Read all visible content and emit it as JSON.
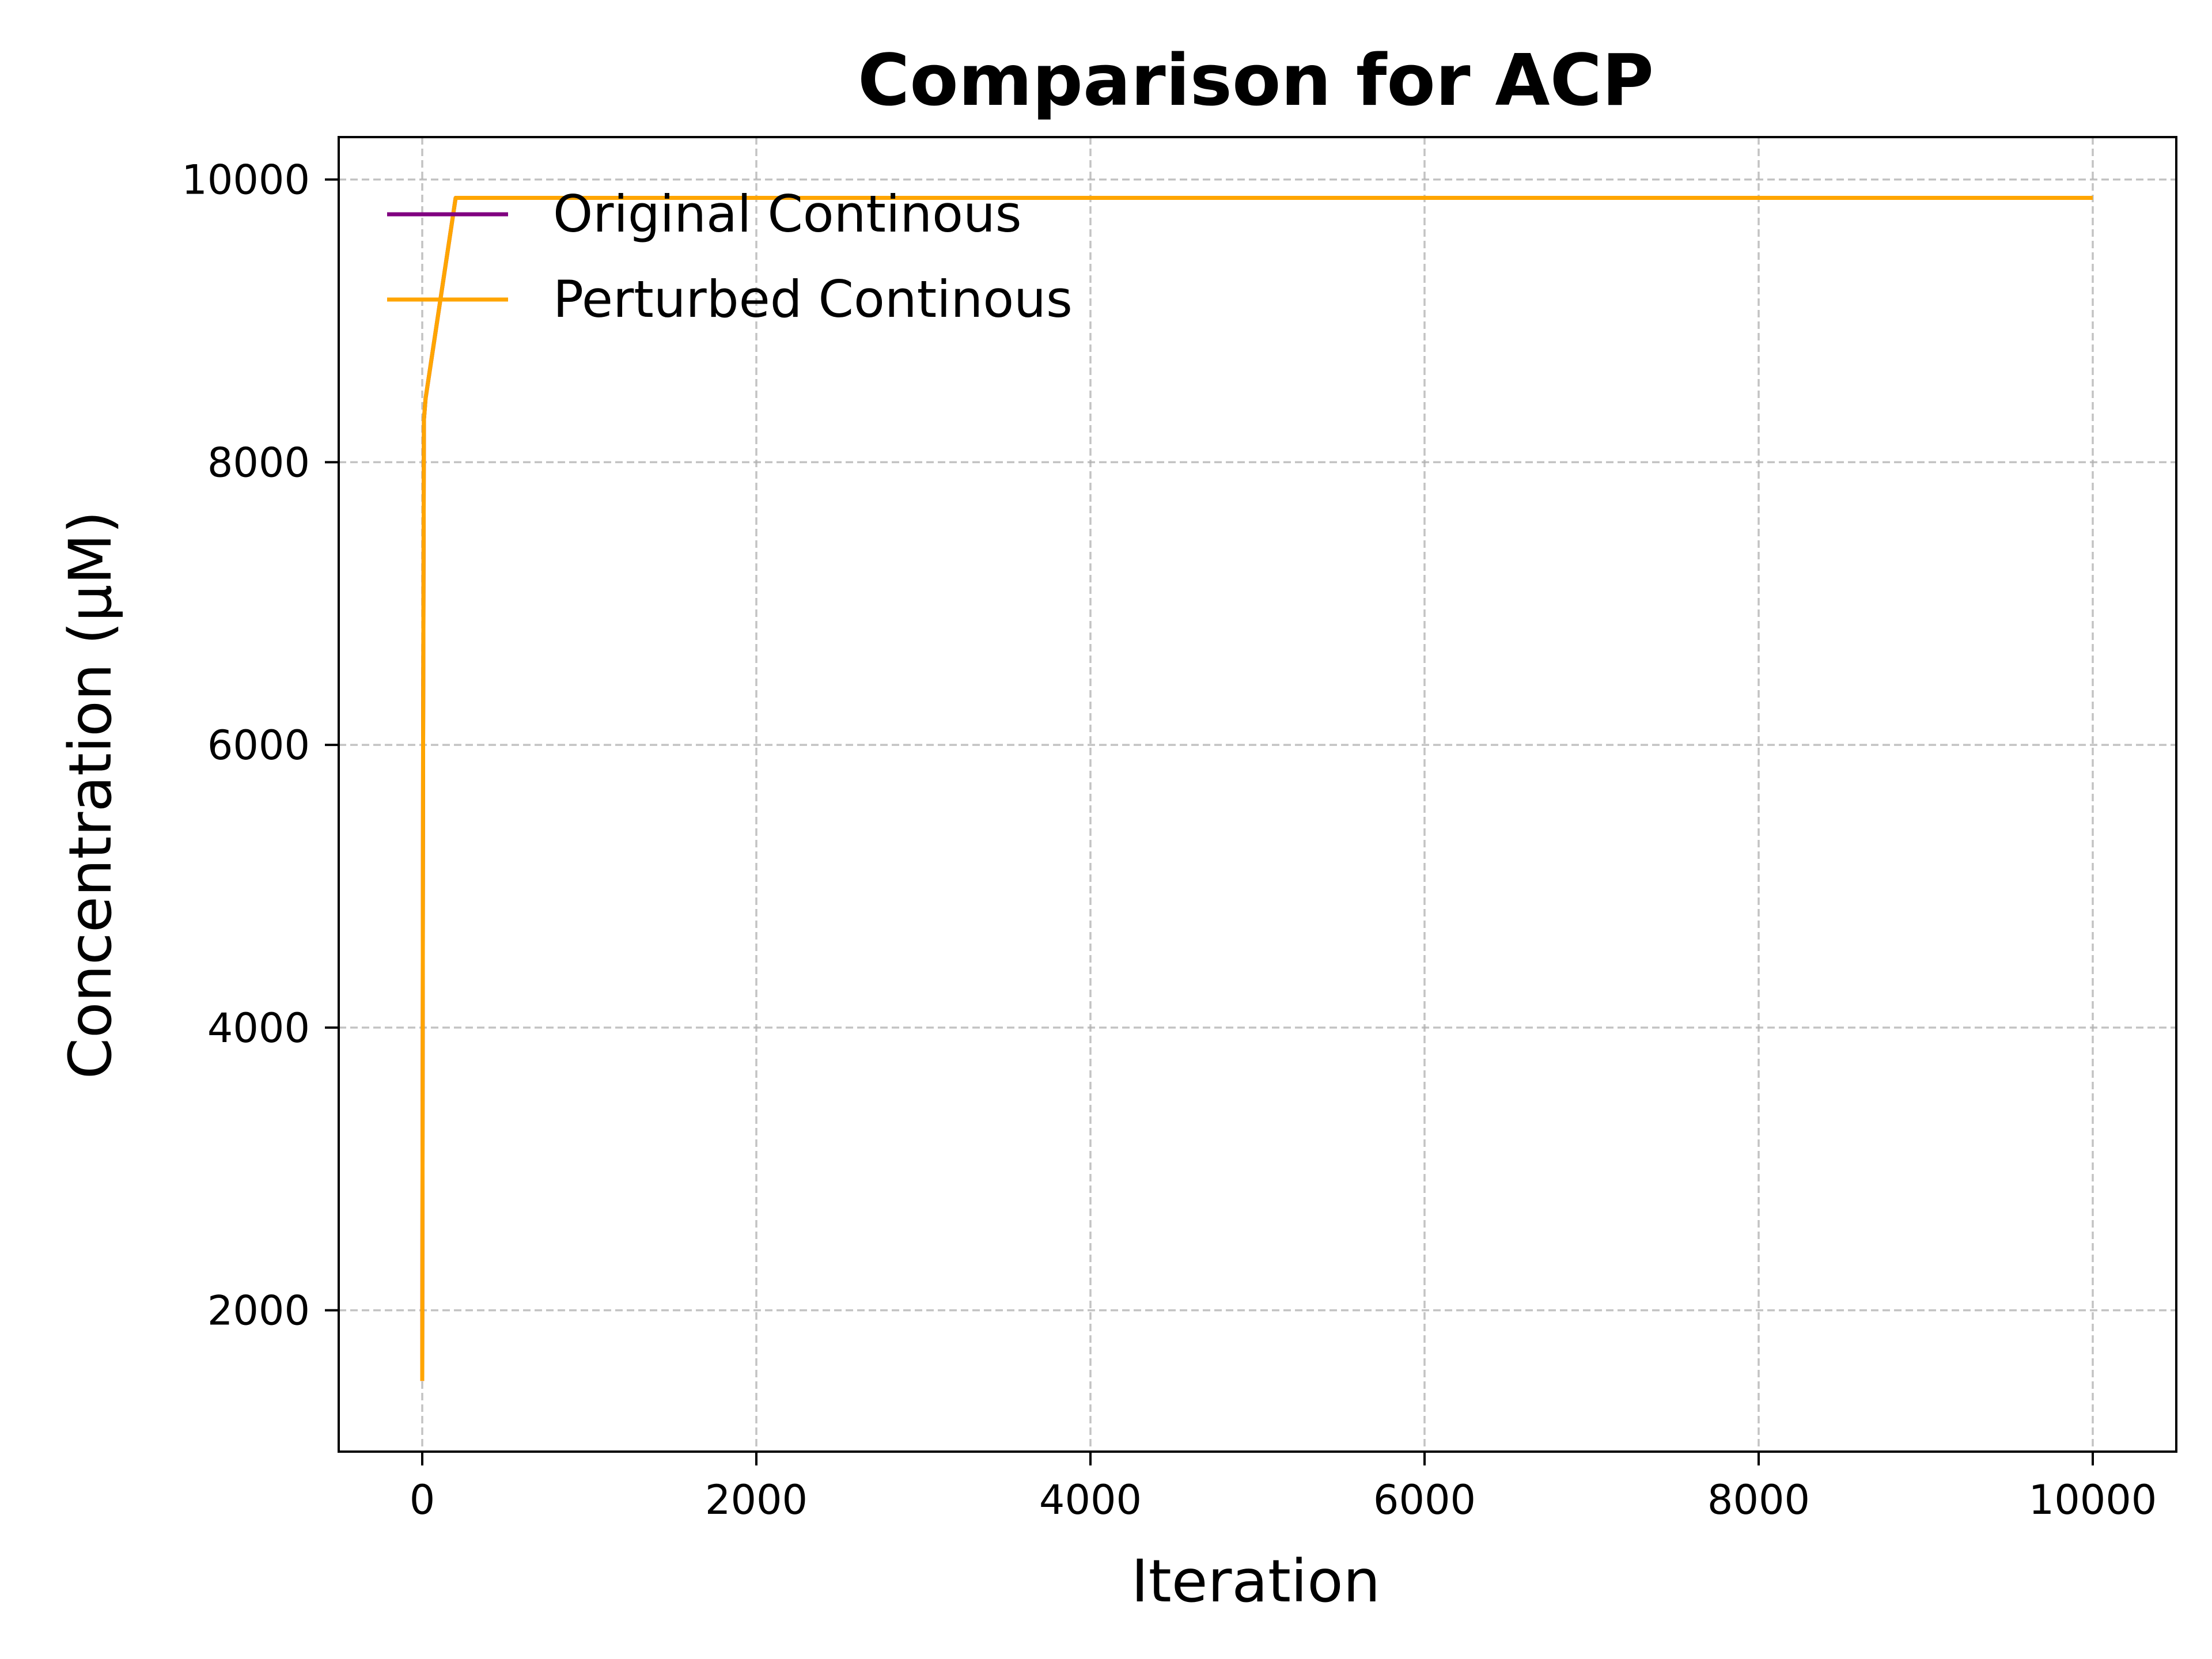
{
  "chart_data": {
    "type": "line",
    "title": "Comparison for ACP",
    "xlabel": "Iteration",
    "ylabel": "Concentration (μM)",
    "xlim": [
      -500,
      10500
    ],
    "ylim": [
      1000,
      10300
    ],
    "xticks": [
      0,
      2000,
      4000,
      6000,
      8000,
      10000
    ],
    "xtick_labels": [
      "0",
      "2000",
      "4000",
      "6000",
      "8000",
      "10000"
    ],
    "yticks": [
      2000,
      4000,
      6000,
      8000,
      10000
    ],
    "ytick_labels": [
      "2000",
      "4000",
      "6000",
      "8000",
      "10000"
    ],
    "grid": true,
    "legend_position": "top-left",
    "series": [
      {
        "name": "Original Continous",
        "color": "#800080",
        "x": [
          0,
          5,
          10,
          20,
          200,
          10000
        ],
        "y": [
          1500,
          6000,
          8300,
          8450,
          9870,
          9870
        ]
      },
      {
        "name": "Perturbed Continous",
        "color": "#FFA500",
        "x": [
          0,
          5,
          10,
          20,
          200,
          10000
        ],
        "y": [
          1500,
          6000,
          8300,
          8450,
          9870,
          9870
        ]
      }
    ]
  }
}
